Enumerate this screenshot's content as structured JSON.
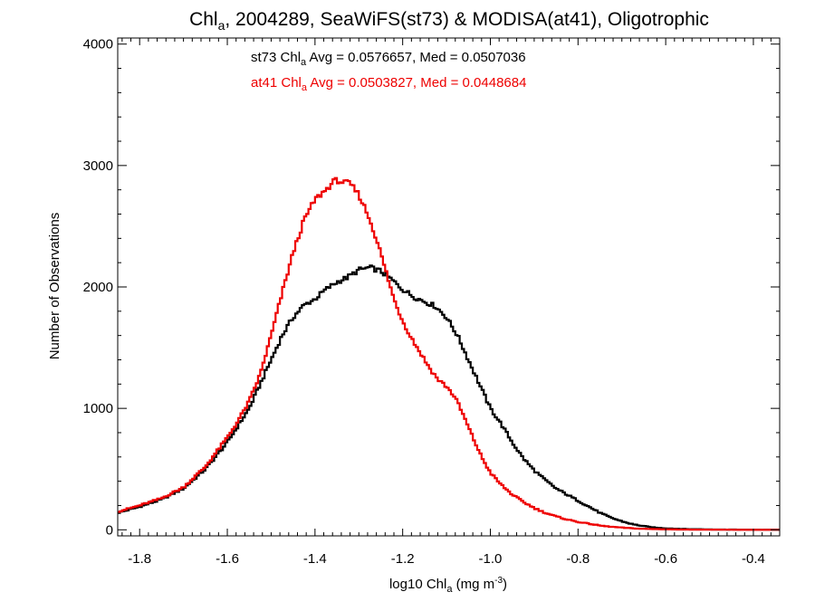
{
  "chart_data": {
    "type": "histogram",
    "title": {
      "prefix": "Chl",
      "sub": "a",
      "suffix": ", 2004289, SeaWiFS(st73) & MODISA(at41), Oligotrophic"
    },
    "xlabel": {
      "prefix": "log10 Chl",
      "sub": "a",
      "mid": " (mg m",
      "sup": "-3",
      "suffix": ")"
    },
    "ylabel": "Number of Observations",
    "xlim": [
      -1.85,
      -0.34
    ],
    "ylim": [
      -50,
      4050
    ],
    "x_ticks": [
      -1.8,
      -1.6,
      -1.4,
      -1.2,
      -1.0,
      -0.8,
      -0.6,
      -0.4
    ],
    "x_tick_labels": [
      "-1.8",
      "-1.6",
      "-1.4",
      "-1.2",
      "-1.0",
      "-0.8",
      "-0.6",
      "-0.4"
    ],
    "y_ticks": [
      0,
      1000,
      2000,
      3000,
      4000
    ],
    "y_tick_labels": [
      "0",
      "1000",
      "2000",
      "3000",
      "4000"
    ],
    "bin_width": 0.005,
    "series": [
      {
        "name": "st73",
        "color": "#000000",
        "stat": {
          "pre": "st73 Chl",
          "sub": "a",
          "post": " Avg = 0.0576657, Med = 0.0507036"
        },
        "points": [
          [
            -1.85,
            140
          ],
          [
            -1.8,
            190
          ],
          [
            -1.75,
            250
          ],
          [
            -1.7,
            340
          ],
          [
            -1.65,
            500
          ],
          [
            -1.6,
            720
          ],
          [
            -1.55,
            1000
          ],
          [
            -1.5,
            1400
          ],
          [
            -1.475,
            1600
          ],
          [
            -1.45,
            1750
          ],
          [
            -1.425,
            1850
          ],
          [
            -1.4,
            1900
          ],
          [
            -1.375,
            1980
          ],
          [
            -1.35,
            2040
          ],
          [
            -1.325,
            2080
          ],
          [
            -1.3,
            2140
          ],
          [
            -1.275,
            2160
          ],
          [
            -1.25,
            2130
          ],
          [
            -1.225,
            2060
          ],
          [
            -1.2,
            1980
          ],
          [
            -1.175,
            1920
          ],
          [
            -1.15,
            1880
          ],
          [
            -1.125,
            1840
          ],
          [
            -1.1,
            1750
          ],
          [
            -1.075,
            1600
          ],
          [
            -1.05,
            1400
          ],
          [
            -1.025,
            1200
          ],
          [
            -1.0,
            1000
          ],
          [
            -0.975,
            870
          ],
          [
            -0.95,
            720
          ],
          [
            -0.925,
            590
          ],
          [
            -0.9,
            490
          ],
          [
            -0.875,
            410
          ],
          [
            -0.85,
            340
          ],
          [
            -0.825,
            290
          ],
          [
            -0.8,
            240
          ],
          [
            -0.775,
            190
          ],
          [
            -0.75,
            140
          ],
          [
            -0.725,
            100
          ],
          [
            -0.7,
            70
          ],
          [
            -0.675,
            45
          ],
          [
            -0.65,
            30
          ],
          [
            -0.625,
            18
          ],
          [
            -0.6,
            12
          ],
          [
            -0.55,
            6
          ],
          [
            -0.5,
            3
          ],
          [
            -0.45,
            2
          ],
          [
            -0.4,
            1
          ],
          [
            -0.34,
            1
          ]
        ]
      },
      {
        "name": "at41",
        "color": "#ee0000",
        "stat": {
          "pre": "at41 Chl",
          "sub": "a",
          "post": " Avg = 0.0503827, Med = 0.0448684"
        },
        "points": [
          [
            -1.85,
            150
          ],
          [
            -1.8,
            200
          ],
          [
            -1.75,
            260
          ],
          [
            -1.7,
            350
          ],
          [
            -1.65,
            520
          ],
          [
            -1.6,
            760
          ],
          [
            -1.575,
            900
          ],
          [
            -1.55,
            1060
          ],
          [
            -1.525,
            1280
          ],
          [
            -1.5,
            1600
          ],
          [
            -1.475,
            1950
          ],
          [
            -1.45,
            2280
          ],
          [
            -1.425,
            2550
          ],
          [
            -1.4,
            2720
          ],
          [
            -1.375,
            2800
          ],
          [
            -1.36,
            2860
          ],
          [
            -1.35,
            2880
          ],
          [
            -1.335,
            2860
          ],
          [
            -1.32,
            2850
          ],
          [
            -1.3,
            2760
          ],
          [
            -1.28,
            2600
          ],
          [
            -1.26,
            2400
          ],
          [
            -1.24,
            2150
          ],
          [
            -1.22,
            1900
          ],
          [
            -1.2,
            1720
          ],
          [
            -1.18,
            1580
          ],
          [
            -1.16,
            1460
          ],
          [
            -1.14,
            1340
          ],
          [
            -1.12,
            1240
          ],
          [
            -1.1,
            1180
          ],
          [
            -1.08,
            1090
          ],
          [
            -1.06,
            930
          ],
          [
            -1.04,
            760
          ],
          [
            -1.02,
            600
          ],
          [
            -1.0,
            470
          ],
          [
            -0.975,
            370
          ],
          [
            -0.95,
            290
          ],
          [
            -0.925,
            230
          ],
          [
            -0.9,
            180
          ],
          [
            -0.875,
            140
          ],
          [
            -0.85,
            110
          ],
          [
            -0.825,
            85
          ],
          [
            -0.8,
            65
          ],
          [
            -0.775,
            50
          ],
          [
            -0.75,
            35
          ],
          [
            -0.725,
            25
          ],
          [
            -0.7,
            18
          ],
          [
            -0.675,
            12
          ],
          [
            -0.65,
            8
          ],
          [
            -0.6,
            4
          ],
          [
            -0.55,
            2
          ],
          [
            -0.5,
            1
          ],
          [
            -0.34,
            0
          ]
        ]
      }
    ]
  }
}
